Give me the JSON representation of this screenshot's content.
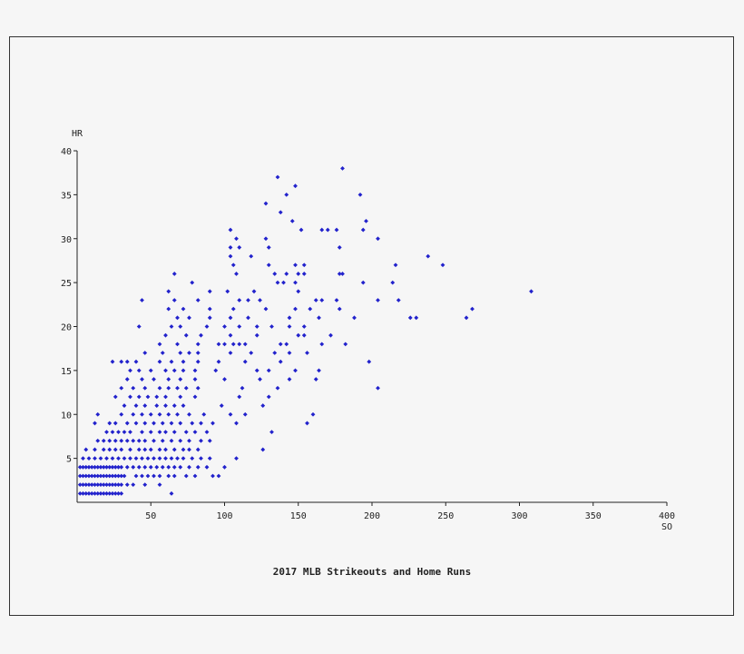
{
  "chart_data": {
    "type": "scatter",
    "title": "2017 MLB Strikeouts and Home Runs",
    "xlabel": "SO",
    "ylabel": "HR",
    "xlim": [
      0,
      400
    ],
    "ylim": [
      0,
      40
    ],
    "xticks": [
      50,
      100,
      150,
      200,
      250,
      300,
      350,
      400
    ],
    "yticks": [
      5,
      10,
      15,
      20,
      25,
      30,
      35,
      40
    ],
    "grid": false,
    "marker_color": "#2222cc",
    "points": [
      [
        2,
        1
      ],
      [
        4,
        1
      ],
      [
        6,
        1
      ],
      [
        8,
        1
      ],
      [
        10,
        1
      ],
      [
        12,
        1
      ],
      [
        14,
        1
      ],
      [
        16,
        1
      ],
      [
        18,
        1
      ],
      [
        20,
        1
      ],
      [
        22,
        1
      ],
      [
        24,
        1
      ],
      [
        26,
        1
      ],
      [
        28,
        1
      ],
      [
        30,
        1
      ],
      [
        64,
        1
      ],
      [
        2,
        2
      ],
      [
        4,
        2
      ],
      [
        6,
        2
      ],
      [
        8,
        2
      ],
      [
        10,
        2
      ],
      [
        12,
        2
      ],
      [
        14,
        2
      ],
      [
        16,
        2
      ],
      [
        18,
        2
      ],
      [
        20,
        2
      ],
      [
        22,
        2
      ],
      [
        24,
        2
      ],
      [
        26,
        2
      ],
      [
        28,
        2
      ],
      [
        30,
        2
      ],
      [
        34,
        2
      ],
      [
        38,
        2
      ],
      [
        46,
        2
      ],
      [
        56,
        2
      ],
      [
        2,
        3
      ],
      [
        4,
        3
      ],
      [
        6,
        3
      ],
      [
        8,
        3
      ],
      [
        10,
        3
      ],
      [
        12,
        3
      ],
      [
        14,
        3
      ],
      [
        16,
        3
      ],
      [
        18,
        3
      ],
      [
        20,
        3
      ],
      [
        22,
        3
      ],
      [
        24,
        3
      ],
      [
        26,
        3
      ],
      [
        28,
        3
      ],
      [
        30,
        3
      ],
      [
        32,
        3
      ],
      [
        40,
        3
      ],
      [
        44,
        3
      ],
      [
        48,
        3
      ],
      [
        52,
        3
      ],
      [
        56,
        3
      ],
      [
        62,
        3
      ],
      [
        66,
        3
      ],
      [
        74,
        3
      ],
      [
        80,
        3
      ],
      [
        92,
        3
      ],
      [
        96,
        3
      ],
      [
        2,
        4
      ],
      [
        4,
        4
      ],
      [
        6,
        4
      ],
      [
        8,
        4
      ],
      [
        10,
        4
      ],
      [
        12,
        4
      ],
      [
        14,
        4
      ],
      [
        16,
        4
      ],
      [
        18,
        4
      ],
      [
        20,
        4
      ],
      [
        22,
        4
      ],
      [
        24,
        4
      ],
      [
        26,
        4
      ],
      [
        28,
        4
      ],
      [
        30,
        4
      ],
      [
        34,
        4
      ],
      [
        38,
        4
      ],
      [
        42,
        4
      ],
      [
        46,
        4
      ],
      [
        50,
        4
      ],
      [
        54,
        4
      ],
      [
        58,
        4
      ],
      [
        62,
        4
      ],
      [
        66,
        4
      ],
      [
        70,
        4
      ],
      [
        76,
        4
      ],
      [
        82,
        4
      ],
      [
        88,
        4
      ],
      [
        100,
        4
      ],
      [
        4,
        5
      ],
      [
        8,
        5
      ],
      [
        12,
        5
      ],
      [
        16,
        5
      ],
      [
        20,
        5
      ],
      [
        24,
        5
      ],
      [
        28,
        5
      ],
      [
        32,
        5
      ],
      [
        36,
        5
      ],
      [
        40,
        5
      ],
      [
        44,
        5
      ],
      [
        48,
        5
      ],
      [
        52,
        5
      ],
      [
        56,
        5
      ],
      [
        60,
        5
      ],
      [
        64,
        5
      ],
      [
        68,
        5
      ],
      [
        72,
        5
      ],
      [
        78,
        5
      ],
      [
        84,
        5
      ],
      [
        90,
        5
      ],
      [
        108,
        5
      ],
      [
        6,
        6
      ],
      [
        12,
        6
      ],
      [
        18,
        6
      ],
      [
        22,
        6
      ],
      [
        26,
        6
      ],
      [
        30,
        6
      ],
      [
        36,
        6
      ],
      [
        42,
        6
      ],
      [
        46,
        6
      ],
      [
        50,
        6
      ],
      [
        56,
        6
      ],
      [
        60,
        6
      ],
      [
        66,
        6
      ],
      [
        72,
        6
      ],
      [
        76,
        6
      ],
      [
        82,
        6
      ],
      [
        126,
        6
      ],
      [
        14,
        7
      ],
      [
        18,
        7
      ],
      [
        22,
        7
      ],
      [
        26,
        7
      ],
      [
        30,
        7
      ],
      [
        34,
        7
      ],
      [
        38,
        7
      ],
      [
        42,
        7
      ],
      [
        46,
        7
      ],
      [
        52,
        7
      ],
      [
        58,
        7
      ],
      [
        64,
        7
      ],
      [
        70,
        7
      ],
      [
        76,
        7
      ],
      [
        84,
        7
      ],
      [
        90,
        7
      ],
      [
        20,
        8
      ],
      [
        24,
        8
      ],
      [
        28,
        8
      ],
      [
        32,
        8
      ],
      [
        36,
        8
      ],
      [
        44,
        8
      ],
      [
        50,
        8
      ],
      [
        56,
        8
      ],
      [
        60,
        8
      ],
      [
        66,
        8
      ],
      [
        74,
        8
      ],
      [
        80,
        8
      ],
      [
        88,
        8
      ],
      [
        132,
        8
      ],
      [
        12,
        9
      ],
      [
        22,
        9
      ],
      [
        26,
        9
      ],
      [
        34,
        9
      ],
      [
        40,
        9
      ],
      [
        46,
        9
      ],
      [
        52,
        9
      ],
      [
        58,
        9
      ],
      [
        64,
        9
      ],
      [
        70,
        9
      ],
      [
        78,
        9
      ],
      [
        84,
        9
      ],
      [
        92,
        9
      ],
      [
        108,
        9
      ],
      [
        156,
        9
      ],
      [
        14,
        10
      ],
      [
        30,
        10
      ],
      [
        38,
        10
      ],
      [
        44,
        10
      ],
      [
        50,
        10
      ],
      [
        56,
        10
      ],
      [
        62,
        10
      ],
      [
        68,
        10
      ],
      [
        76,
        10
      ],
      [
        86,
        10
      ],
      [
        104,
        10
      ],
      [
        114,
        10
      ],
      [
        160,
        10
      ],
      [
        32,
        11
      ],
      [
        40,
        11
      ],
      [
        46,
        11
      ],
      [
        54,
        11
      ],
      [
        60,
        11
      ],
      [
        66,
        11
      ],
      [
        72,
        11
      ],
      [
        98,
        11
      ],
      [
        126,
        11
      ],
      [
        26,
        12
      ],
      [
        36,
        12
      ],
      [
        42,
        12
      ],
      [
        48,
        12
      ],
      [
        54,
        12
      ],
      [
        60,
        12
      ],
      [
        70,
        12
      ],
      [
        80,
        12
      ],
      [
        110,
        12
      ],
      [
        130,
        12
      ],
      [
        30,
        13
      ],
      [
        38,
        13
      ],
      [
        46,
        13
      ],
      [
        56,
        13
      ],
      [
        62,
        13
      ],
      [
        68,
        13
      ],
      [
        74,
        13
      ],
      [
        82,
        13
      ],
      [
        112,
        13
      ],
      [
        136,
        13
      ],
      [
        204,
        13
      ],
      [
        34,
        14
      ],
      [
        44,
        14
      ],
      [
        52,
        14
      ],
      [
        62,
        14
      ],
      [
        70,
        14
      ],
      [
        80,
        14
      ],
      [
        100,
        14
      ],
      [
        124,
        14
      ],
      [
        144,
        14
      ],
      [
        162,
        14
      ],
      [
        36,
        15
      ],
      [
        42,
        15
      ],
      [
        50,
        15
      ],
      [
        60,
        15
      ],
      [
        66,
        15
      ],
      [
        72,
        15
      ],
      [
        80,
        15
      ],
      [
        94,
        15
      ],
      [
        122,
        15
      ],
      [
        130,
        15
      ],
      [
        148,
        15
      ],
      [
        164,
        15
      ],
      [
        24,
        16
      ],
      [
        30,
        16
      ],
      [
        34,
        16
      ],
      [
        40,
        16
      ],
      [
        56,
        16
      ],
      [
        64,
        16
      ],
      [
        72,
        16
      ],
      [
        82,
        16
      ],
      [
        96,
        16
      ],
      [
        114,
        16
      ],
      [
        138,
        16
      ],
      [
        198,
        16
      ],
      [
        46,
        17
      ],
      [
        58,
        17
      ],
      [
        70,
        17
      ],
      [
        76,
        17
      ],
      [
        82,
        17
      ],
      [
        104,
        17
      ],
      [
        118,
        17
      ],
      [
        134,
        17
      ],
      [
        144,
        17
      ],
      [
        156,
        17
      ],
      [
        56,
        18
      ],
      [
        68,
        18
      ],
      [
        82,
        18
      ],
      [
        96,
        18
      ],
      [
        100,
        18
      ],
      [
        106,
        18
      ],
      [
        110,
        18
      ],
      [
        114,
        18
      ],
      [
        138,
        18
      ],
      [
        142,
        18
      ],
      [
        166,
        18
      ],
      [
        182,
        18
      ],
      [
        60,
        19
      ],
      [
        74,
        19
      ],
      [
        84,
        19
      ],
      [
        104,
        19
      ],
      [
        122,
        19
      ],
      [
        150,
        19
      ],
      [
        154,
        19
      ],
      [
        172,
        19
      ],
      [
        42,
        20
      ],
      [
        64,
        20
      ],
      [
        70,
        20
      ],
      [
        88,
        20
      ],
      [
        100,
        20
      ],
      [
        110,
        20
      ],
      [
        122,
        20
      ],
      [
        132,
        20
      ],
      [
        144,
        20
      ],
      [
        154,
        20
      ],
      [
        68,
        21
      ],
      [
        76,
        21
      ],
      [
        90,
        21
      ],
      [
        104,
        21
      ],
      [
        116,
        21
      ],
      [
        144,
        21
      ],
      [
        164,
        21
      ],
      [
        188,
        21
      ],
      [
        226,
        21
      ],
      [
        230,
        21
      ],
      [
        264,
        21
      ],
      [
        62,
        22
      ],
      [
        72,
        22
      ],
      [
        90,
        22
      ],
      [
        106,
        22
      ],
      [
        128,
        22
      ],
      [
        148,
        22
      ],
      [
        158,
        22
      ],
      [
        178,
        22
      ],
      [
        268,
        22
      ],
      [
        44,
        23
      ],
      [
        66,
        23
      ],
      [
        82,
        23
      ],
      [
        110,
        23
      ],
      [
        116,
        23
      ],
      [
        124,
        23
      ],
      [
        162,
        23
      ],
      [
        166,
        23
      ],
      [
        176,
        23
      ],
      [
        204,
        23
      ],
      [
        218,
        23
      ],
      [
        62,
        24
      ],
      [
        90,
        24
      ],
      [
        102,
        24
      ],
      [
        120,
        24
      ],
      [
        150,
        24
      ],
      [
        308,
        24
      ],
      [
        78,
        25
      ],
      [
        136,
        25
      ],
      [
        140,
        25
      ],
      [
        148,
        25
      ],
      [
        194,
        25
      ],
      [
        214,
        25
      ],
      [
        66,
        26
      ],
      [
        108,
        26
      ],
      [
        134,
        26
      ],
      [
        142,
        26
      ],
      [
        150,
        26
      ],
      [
        154,
        26
      ],
      [
        178,
        26
      ],
      [
        180,
        26
      ],
      [
        106,
        27
      ],
      [
        130,
        27
      ],
      [
        148,
        27
      ],
      [
        154,
        27
      ],
      [
        216,
        27
      ],
      [
        248,
        27
      ],
      [
        104,
        28
      ],
      [
        118,
        28
      ],
      [
        238,
        28
      ],
      [
        104,
        29
      ],
      [
        110,
        29
      ],
      [
        130,
        29
      ],
      [
        178,
        29
      ],
      [
        108,
        30
      ],
      [
        128,
        30
      ],
      [
        204,
        30
      ],
      [
        104,
        31
      ],
      [
        152,
        31
      ],
      [
        166,
        31
      ],
      [
        170,
        31
      ],
      [
        176,
        31
      ],
      [
        194,
        31
      ],
      [
        146,
        32
      ],
      [
        196,
        32
      ],
      [
        138,
        33
      ],
      [
        128,
        34
      ],
      [
        142,
        35
      ],
      [
        192,
        35
      ],
      [
        148,
        36
      ],
      [
        136,
        37
      ],
      [
        180,
        38
      ]
    ]
  }
}
